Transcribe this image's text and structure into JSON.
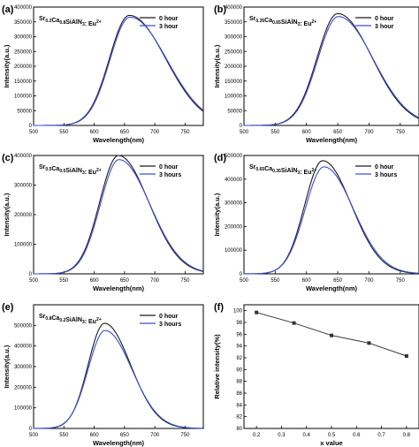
{
  "colors": {
    "black_series": "#1a1a1a",
    "blue_series": "#3a4fd4",
    "axis": "#000000"
  },
  "chart_data": [
    {
      "panel_label": "(a)",
      "type": "line",
      "title_parts": [
        [
          "Sr",
          ""
        ],
        [
          "0.2",
          "sub"
        ],
        [
          "Ca",
          ""
        ],
        [
          "0.8",
          "sub"
        ],
        [
          "SiAlN",
          ""
        ],
        [
          "3",
          "sub"
        ],
        [
          ": Eu",
          ""
        ],
        [
          "2+",
          "sup"
        ]
      ],
      "xlabel": "Wavelength(nm)",
      "ylabel": "Intensity(a.u.)",
      "xlim": [
        500,
        780
      ],
      "ylim": [
        0,
        400000
      ],
      "xticks": [
        500,
        550,
        600,
        650,
        700,
        750
      ],
      "yticks": [
        0,
        50000,
        100000,
        150000,
        200000,
        250000,
        300000,
        350000,
        400000
      ],
      "legend_position": "top-right",
      "series": [
        {
          "name": "0 hour",
          "color": "#1a1a1a",
          "peak": 372000,
          "center": 658,
          "sigma_left": 33,
          "sigma_right": 60
        },
        {
          "name": "3 hour",
          "color": "#3a4fd4",
          "peak": 366000,
          "center": 659,
          "sigma_left": 33,
          "sigma_right": 61
        }
      ]
    },
    {
      "panel_label": "(b)",
      "type": "line",
      "title_parts": [
        [
          "Sr",
          ""
        ],
        [
          "0.35",
          "sub"
        ],
        [
          "Ca",
          ""
        ],
        [
          "0.65",
          "sub"
        ],
        [
          "SiAlN",
          ""
        ],
        [
          "3",
          "sub"
        ],
        [
          ": Eu",
          ""
        ],
        [
          "2+",
          "sup"
        ]
      ],
      "xlabel": "Wavelength(nm)",
      "ylabel": "Intensity(a.u.)",
      "xlim": [
        500,
        780
      ],
      "ylim": [
        0,
        400000
      ],
      "xticks": [
        500,
        550,
        600,
        650,
        700,
        750
      ],
      "yticks": [
        0,
        50000,
        100000,
        150000,
        200000,
        250000,
        300000,
        350000,
        400000
      ],
      "legend_position": "top-right",
      "series": [
        {
          "name": "0 hour",
          "color": "#1a1a1a",
          "peak": 378000,
          "center": 650,
          "sigma_left": 33,
          "sigma_right": 55
        },
        {
          "name": "3 hour",
          "color": "#3a4fd4",
          "peak": 368000,
          "center": 651,
          "sigma_left": 33,
          "sigma_right": 56
        }
      ]
    },
    {
      "panel_label": "(c)",
      "type": "line",
      "title_parts": [
        [
          "Sr",
          ""
        ],
        [
          "0.5",
          "sub"
        ],
        [
          "Ca",
          ""
        ],
        [
          "0.5",
          "sub"
        ],
        [
          "SiAlN",
          ""
        ],
        [
          "3",
          "sub"
        ],
        [
          ": Eu",
          ""
        ],
        [
          "2+",
          "sup"
        ]
      ],
      "xlabel": "Wavelength(nm)",
      "ylabel": "Intensity(a.u.)",
      "xlim": [
        500,
        780
      ],
      "ylim": [
        0,
        400000
      ],
      "xticks": [
        500,
        550,
        600,
        650,
        700,
        750
      ],
      "yticks": [
        0,
        100000,
        200000,
        300000,
        400000
      ],
      "legend_position": "top-right",
      "series": [
        {
          "name": "0 hour",
          "color": "#1a1a1a",
          "peak": 400000,
          "center": 640,
          "sigma_left": 31,
          "sigma_right": 50
        },
        {
          "name": "3 hours",
          "color": "#3a4fd4",
          "peak": 386000,
          "center": 641,
          "sigma_left": 31,
          "sigma_right": 51
        }
      ]
    },
    {
      "panel_label": "(d)",
      "type": "line",
      "title_parts": [
        [
          "Sr",
          ""
        ],
        [
          "0.65",
          "sub"
        ],
        [
          "Ca",
          ""
        ],
        [
          "0.35",
          "sub"
        ],
        [
          "SiAlN",
          ""
        ],
        [
          "3",
          "sub"
        ],
        [
          ": Eu",
          ""
        ],
        [
          "2+",
          "sup"
        ]
      ],
      "xlabel": "Wavelength(nm)",
      "ylabel": "Intensity(a.u.)",
      "xlim": [
        500,
        780
      ],
      "ylim": [
        0,
        500000
      ],
      "xticks": [
        500,
        550,
        600,
        650,
        700,
        750
      ],
      "yticks": [
        0,
        100000,
        200000,
        300000,
        400000,
        500000
      ],
      "legend_position": "top-right",
      "series": [
        {
          "name": "0 hour",
          "color": "#1a1a1a",
          "peak": 478000,
          "center": 626,
          "sigma_left": 29,
          "sigma_right": 46
        },
        {
          "name": "3 hours",
          "color": "#3a4fd4",
          "peak": 452000,
          "center": 628,
          "sigma_left": 30,
          "sigma_right": 47
        }
      ]
    },
    {
      "panel_label": "(e)",
      "type": "line",
      "title_parts": [
        [
          "Sr",
          ""
        ],
        [
          "0.8",
          "sub"
        ],
        [
          "Ca",
          ""
        ],
        [
          "0.2",
          "sub"
        ],
        [
          "SiAlN",
          ""
        ],
        [
          "3",
          "sub"
        ],
        [
          ": Eu",
          ""
        ],
        [
          "2+",
          "sup"
        ]
      ],
      "xlabel": "Wavelength(nm)",
      "ylabel": "Intensity(a.u.)",
      "xlim": [
        500,
        780
      ],
      "ylim": [
        0,
        600000
      ],
      "xticks": [
        500,
        550,
        600,
        650,
        700,
        750
      ],
      "yticks": [
        0,
        100000,
        200000,
        300000,
        400000,
        500000
      ],
      "legend_position": "top-right",
      "series": [
        {
          "name": "0 hour",
          "color": "#1a1a1a",
          "peak": 510000,
          "center": 617,
          "sigma_left": 27,
          "sigma_right": 43
        },
        {
          "name": "3 hours",
          "color": "#3a4fd4",
          "peak": 475000,
          "center": 618,
          "sigma_left": 28,
          "sigma_right": 44
        }
      ]
    },
    {
      "panel_label": "(f)",
      "type": "line",
      "xlabel": "x value",
      "ylabel": "Relative intensity(%)",
      "xlim": [
        0.15,
        0.85
      ],
      "ylim": [
        80,
        101
      ],
      "xticks": [
        0.2,
        0.3,
        0.4,
        0.5,
        0.6,
        0.7,
        0.8
      ],
      "yticks": [
        80,
        82,
        84,
        86,
        88,
        90,
        92,
        94,
        96,
        98,
        100
      ],
      "x": [
        0.2,
        0.35,
        0.5,
        0.65,
        0.8
      ],
      "y": [
        99.7,
        97.9,
        95.8,
        94.5,
        92.3
      ],
      "color": "#333333"
    }
  ]
}
